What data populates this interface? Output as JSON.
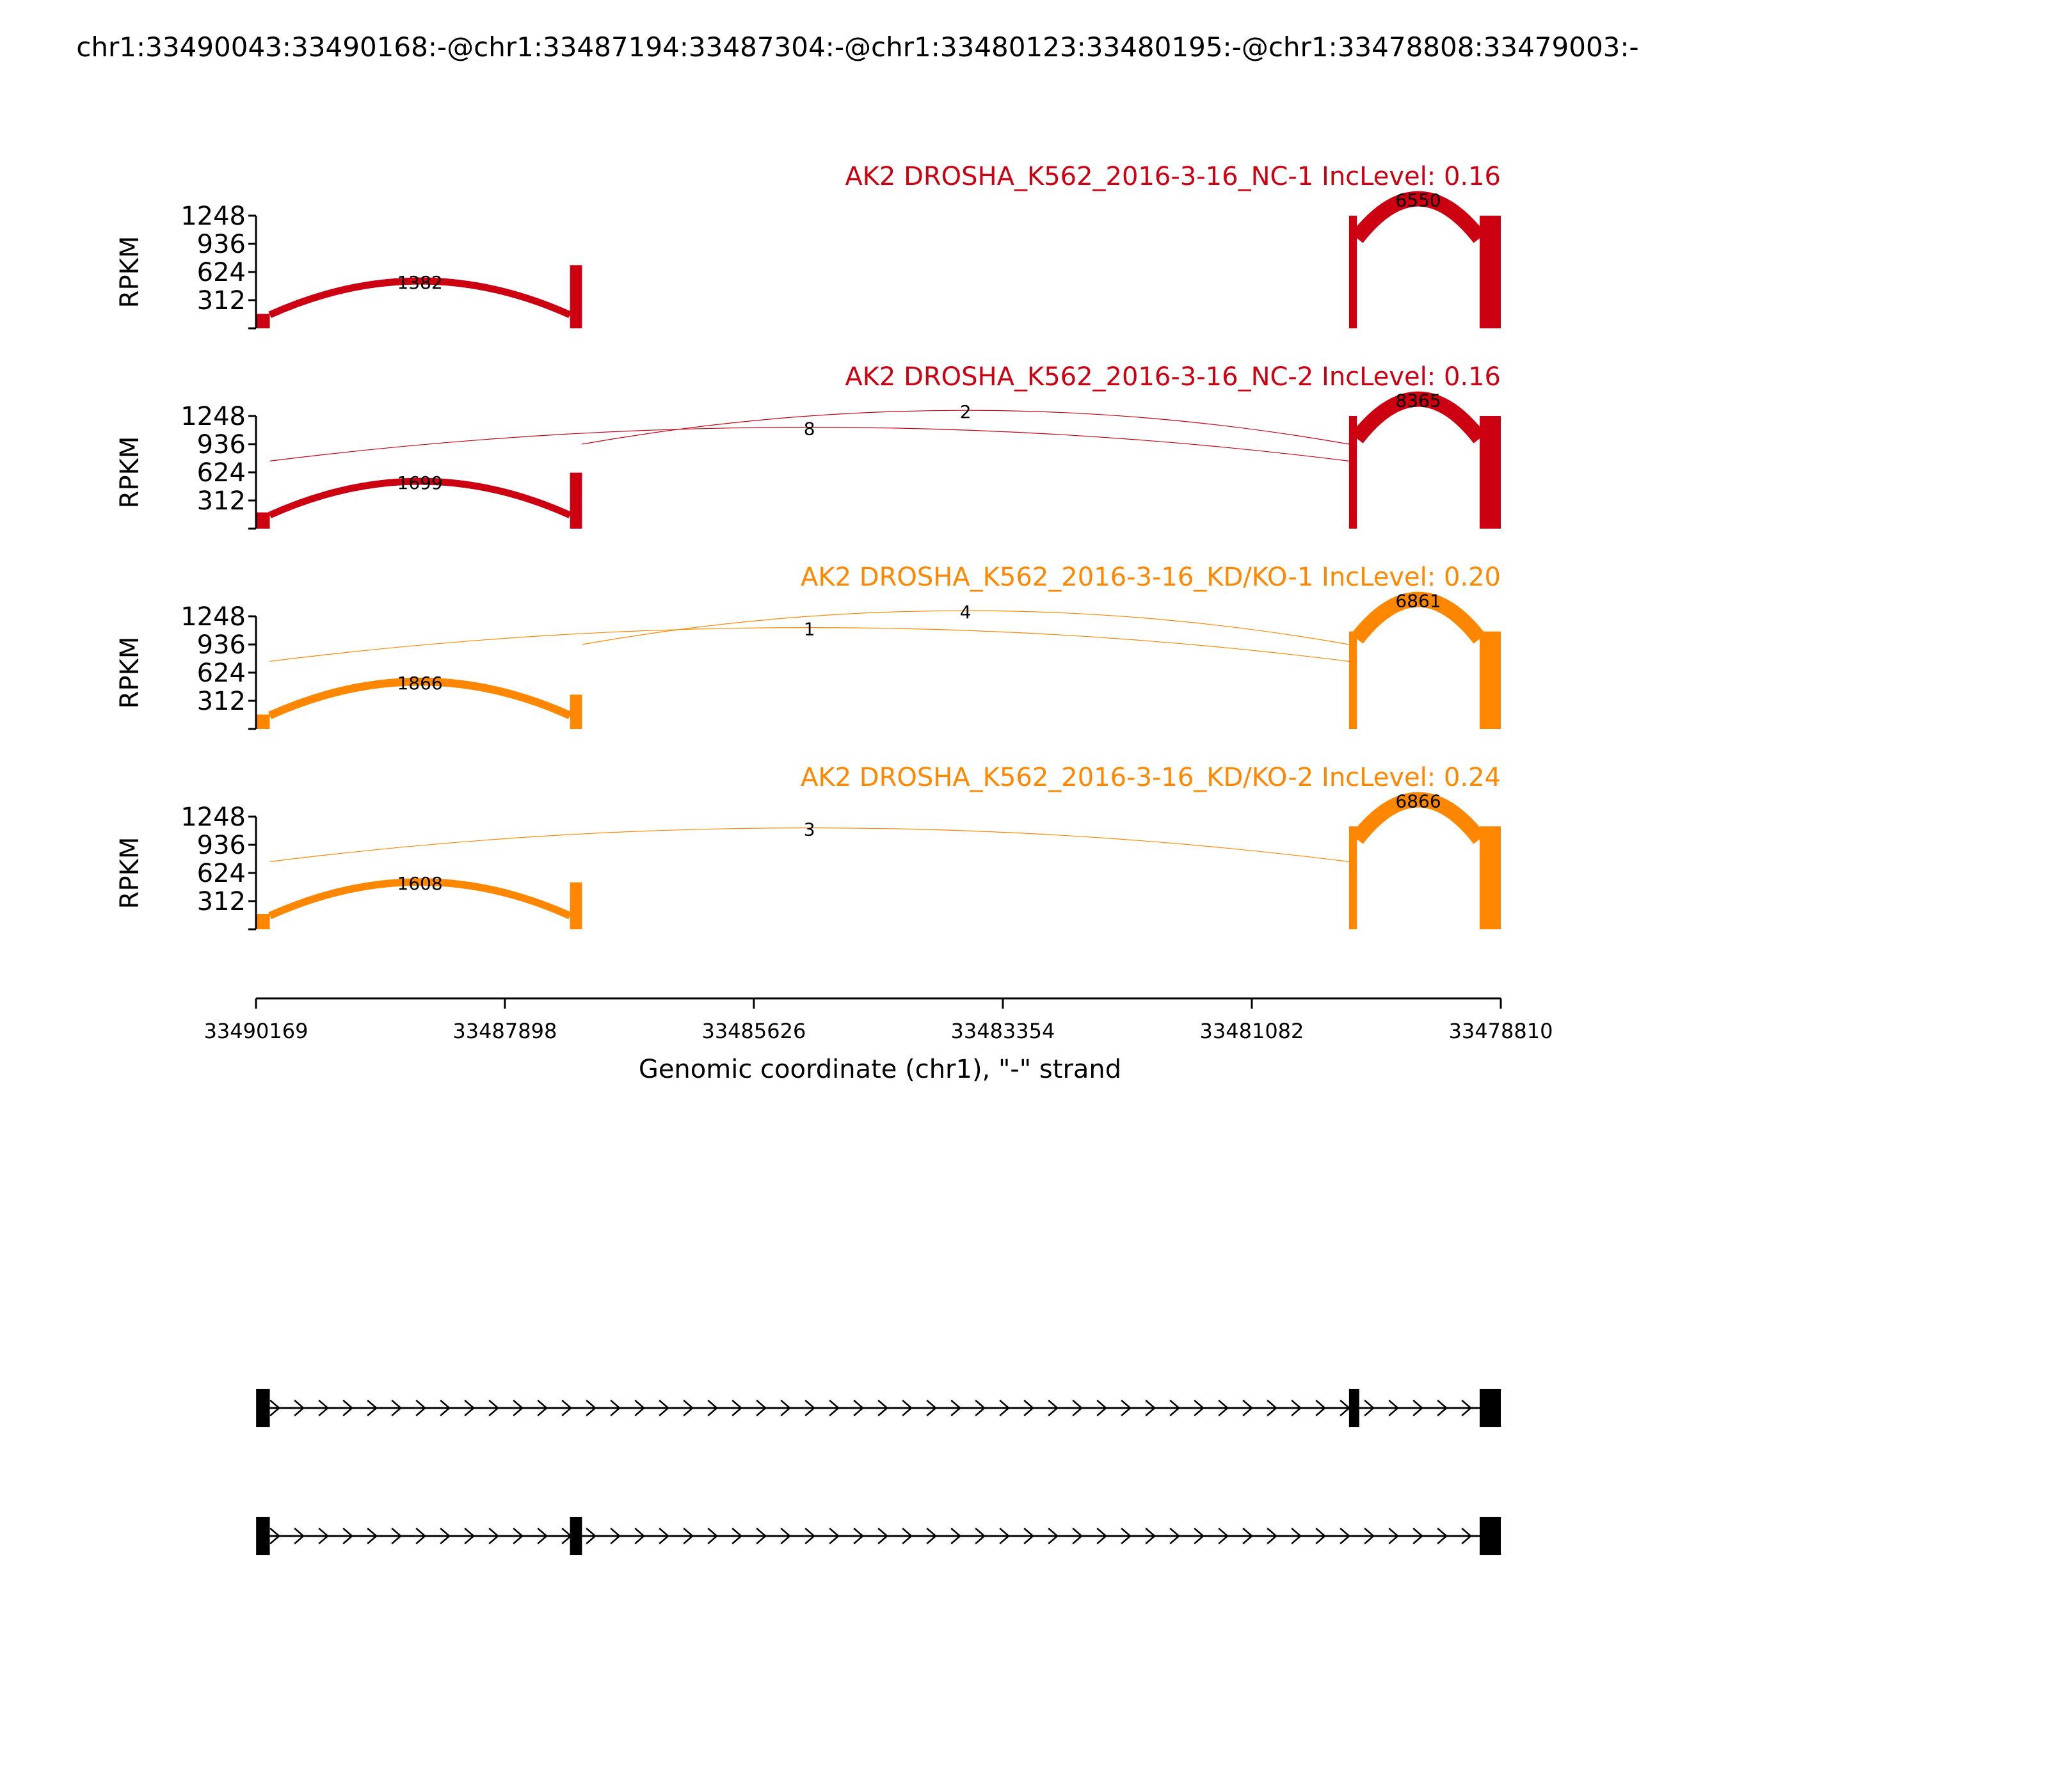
{
  "figure": {
    "title": "chr1:33490043:33490168:-@chr1:33487194:33487304:-@chr1:33480123:33480195:-@chr1:33478808:33479003:-",
    "xlabel": "Genomic coordinate (chr1), \"-\" strand",
    "ylabel": "RPKM",
    "x_ticks": [
      "33490169",
      "33487898",
      "33485626",
      "33483354",
      "33481082",
      "33478810"
    ],
    "x_range": [
      33490169,
      33478810
    ],
    "y_ticks": [
      "1248",
      "936",
      "624",
      "312"
    ],
    "y_range": [
      0,
      1248
    ]
  },
  "chart_data": {
    "type": "area",
    "title": "chr1:33490043:33490168:-@chr1:33487194:33487304:-@chr1:33480123:33480195:-@chr1:33478808:33479003:-",
    "xlabel": "Genomic coordinate (chr1), \"-\" strand",
    "ylabel": "RPKM",
    "xlim": [
      33490169,
      33478810
    ],
    "ylim": [
      0,
      1248
    ],
    "series": [
      {
        "name": "AK2 DROSHA_K562_2016-3-16_NC-1 IncLevel: 0.16",
        "color": "#cc0011",
        "coverage": [
          {
            "x": [
              33490168,
              33490043
            ],
            "rpkm": 160
          },
          {
            "x": [
              33487304,
              33487194
            ],
            "rpkm": 700
          },
          {
            "x": [
              33480195,
              33480123
            ],
            "rpkm": 1248
          },
          {
            "x": [
              33479003,
              33478810
            ],
            "rpkm": 1248
          }
        ],
        "junctions": [
          {
            "from": 33490043,
            "to": 33487304,
            "count": 1382
          },
          {
            "from": 33480123,
            "to": 33479003,
            "count": 6550
          }
        ]
      },
      {
        "name": "AK2 DROSHA_K562_2016-3-16_NC-2 IncLevel: 0.16",
        "color": "#cc0011",
        "coverage": [
          {
            "x": [
              33490168,
              33490043
            ],
            "rpkm": 180
          },
          {
            "x": [
              33487304,
              33487194
            ],
            "rpkm": 620
          },
          {
            "x": [
              33480195,
              33480123
            ],
            "rpkm": 1248
          },
          {
            "x": [
              33479003,
              33478810
            ],
            "rpkm": 1248
          }
        ],
        "junctions": [
          {
            "from": 33490043,
            "to": 33487304,
            "count": 1699
          },
          {
            "from": 33490043,
            "to": 33480195,
            "count": 8
          },
          {
            "from": 33487194,
            "to": 33480195,
            "count": 2
          },
          {
            "from": 33480123,
            "to": 33479003,
            "count": 8365
          }
        ]
      },
      {
        "name": "AK2 DROSHA_K562_2016-3-16_KD/KO-1 IncLevel: 0.20",
        "color": "#ff8700",
        "coverage": [
          {
            "x": [
              33490168,
              33490043
            ],
            "rpkm": 160
          },
          {
            "x": [
              33487304,
              33487194
            ],
            "rpkm": 380
          },
          {
            "x": [
              33480195,
              33480123
            ],
            "rpkm": 1080
          },
          {
            "x": [
              33479003,
              33478810
            ],
            "rpkm": 1080
          }
        ],
        "junctions": [
          {
            "from": 33490043,
            "to": 33487304,
            "count": 1866
          },
          {
            "from": 33490043,
            "to": 33480195,
            "count": 1
          },
          {
            "from": 33487194,
            "to": 33480195,
            "count": 4
          },
          {
            "from": 33480123,
            "to": 33479003,
            "count": 6861
          }
        ]
      },
      {
        "name": "AK2 DROSHA_K562_2016-3-16_KD/KO-2 IncLevel: 0.24",
        "color": "#ff8700",
        "coverage": [
          {
            "x": [
              33490168,
              33490043
            ],
            "rpkm": 170
          },
          {
            "x": [
              33487304,
              33487194
            ],
            "rpkm": 520
          },
          {
            "x": [
              33480195,
              33480123
            ],
            "rpkm": 1140
          },
          {
            "x": [
              33479003,
              33478810
            ],
            "rpkm": 1140
          }
        ],
        "junctions": [
          {
            "from": 33490043,
            "to": 33487304,
            "count": 1608
          },
          {
            "from": 33490043,
            "to": 33480195,
            "count": 3
          },
          {
            "from": 33480123,
            "to": 33479003,
            "count": 6866
          }
        ]
      }
    ],
    "isoforms": [
      {
        "exons": [
          [
            33490168,
            33490043
          ],
          [
            33480195,
            33480123
          ],
          [
            33479003,
            33478810
          ]
        ]
      },
      {
        "exons": [
          [
            33490168,
            33490043
          ],
          [
            33487304,
            33487194
          ],
          [
            33479003,
            33478810
          ]
        ]
      }
    ]
  }
}
